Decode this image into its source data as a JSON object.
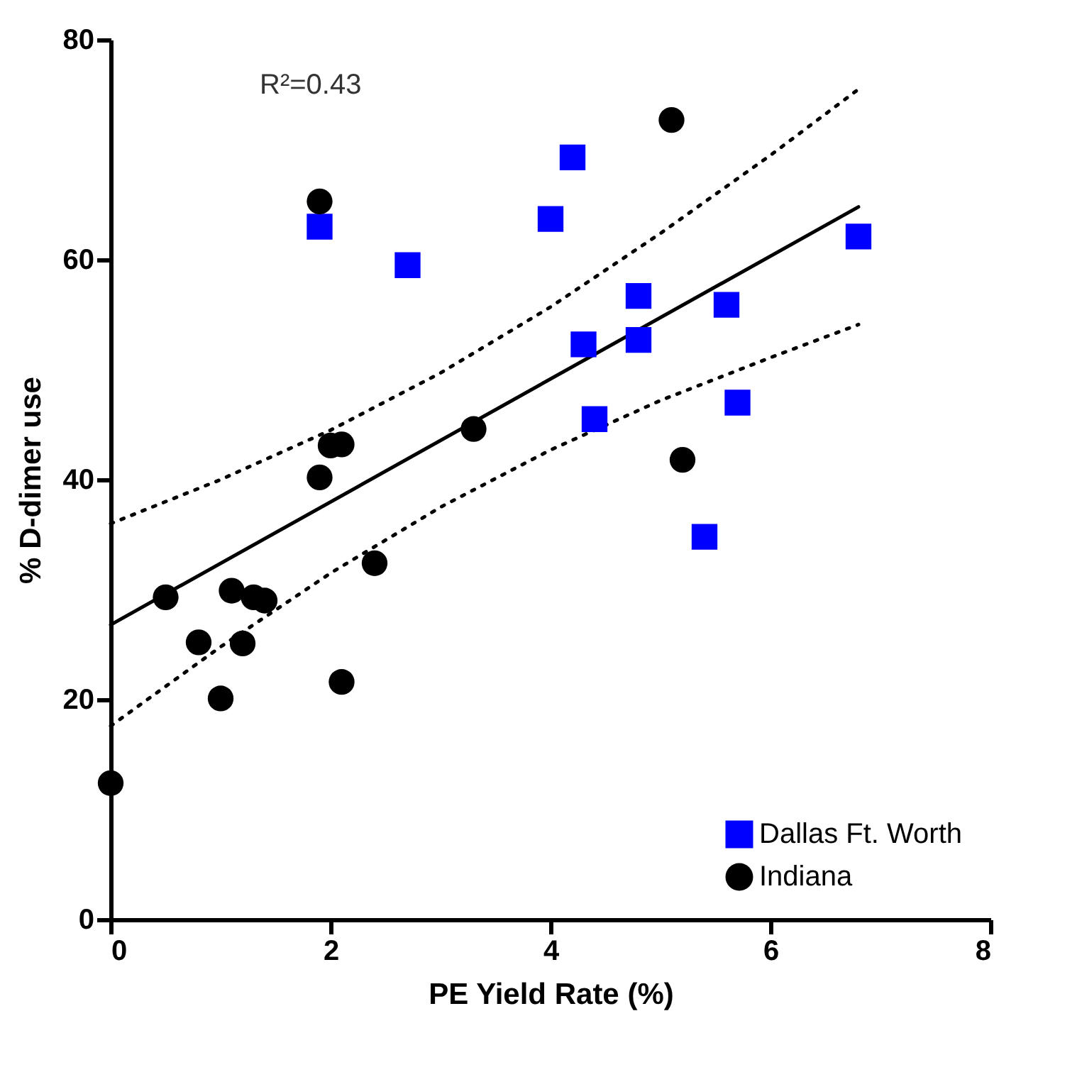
{
  "chart_data": {
    "type": "scatter",
    "xlabel": "PE Yield Rate (%)",
    "ylabel": "% D-dimer use",
    "annotations": [
      "R²=0.43"
    ],
    "xlim": [
      0,
      8
    ],
    "xticks": [
      0,
      2,
      4,
      6,
      8
    ],
    "ylim": [
      0,
      80
    ],
    "yticks": [
      0,
      20,
      40,
      60,
      80
    ],
    "grid": false,
    "legend": "bottom right",
    "series": [
      {
        "name": "Dallas Ft. Worth",
        "color": "#0000ff",
        "marker": "square",
        "x": [
          1.9,
          2.7,
          4.0,
          4.2,
          4.3,
          4.4,
          4.8,
          4.8,
          5.4,
          5.6,
          5.7,
          6.8
        ],
        "values": [
          63.0,
          59.5,
          63.7,
          69.3,
          52.3,
          45.5,
          56.7,
          52.7,
          34.8,
          55.9,
          47.0,
          62.1
        ]
      },
      {
        "name": "Indiana",
        "color": "#000000",
        "marker": "circle",
        "x": [
          0,
          0.5,
          0.8,
          1.0,
          1.1,
          1.2,
          1.3,
          1.4,
          1.9,
          1.9,
          2.0,
          2.1,
          2.1,
          2.4,
          3.3,
          5.1,
          5.2
        ],
        "values": [
          12.4,
          29.3,
          25.2,
          20.1,
          29.9,
          25.1,
          29.3,
          29.0,
          40.2,
          65.3,
          43.1,
          43.2,
          21.6,
          32.4,
          44.6,
          72.7,
          41.8
        ]
      },
      {
        "type": "line",
        "color": "#000000",
        "line_style": "solid",
        "x": [
          0,
          6.8
        ],
        "values": [
          26.8,
          64.8
        ]
      },
      {
        "type": "line",
        "color": "#000000",
        "line_style": "dotted",
        "x": [
          0,
          1,
          2,
          3,
          4,
          5,
          6,
          6.8
        ],
        "values": [
          36.0,
          40.0,
          44.5,
          49.7,
          55.7,
          62.4,
          69.5,
          75.5
        ]
      },
      {
        "type": "line",
        "color": "#000000",
        "line_style": "dotted",
        "x": [
          0,
          1,
          2,
          3,
          4,
          5,
          6,
          6.8
        ],
        "values": [
          17.6,
          24.8,
          31.5,
          37.5,
          42.7,
          47.2,
          51.1,
          54.1
        ]
      }
    ]
  }
}
